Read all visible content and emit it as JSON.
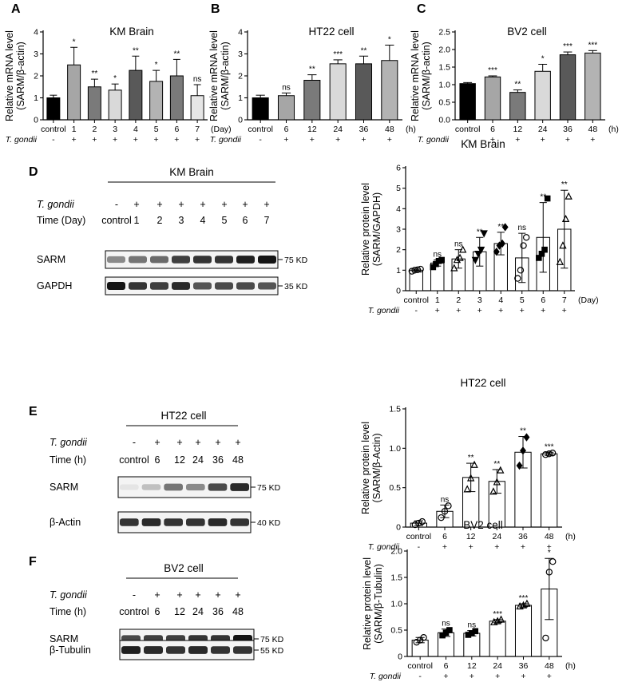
{
  "panel_A": {
    "letter": "A",
    "title": "KM Brain",
    "ylabel1": "Relative mRNA level",
    "ylabel2": "(SARM/β-actin)",
    "yticks": [
      "0",
      "1",
      "2",
      "3",
      "4"
    ],
    "categories": [
      "control",
      "1",
      "2",
      "3",
      "4",
      "5",
      "6",
      "7"
    ],
    "unit": "(Day)",
    "treatment_label": "T. gondii",
    "treatment_marks": [
      "-",
      "+",
      "+",
      "+",
      "+",
      "+",
      "+",
      "+"
    ],
    "values": [
      1.0,
      2.5,
      1.5,
      1.35,
      2.25,
      1.75,
      2.0,
      1.1
    ],
    "errors": [
      0.12,
      0.8,
      0.35,
      0.28,
      0.65,
      0.5,
      0.75,
      0.5
    ],
    "significance": [
      "",
      "*",
      "**",
      "*",
      "**",
      "*",
      "**",
      "ns"
    ],
    "colors": [
      "#000000",
      "#a6a6a6",
      "#7a7a7a",
      "#d9d9d9",
      "#595959",
      "#b3b3b3",
      "#7a7a7a",
      "#e6e6e6"
    ]
  },
  "panel_B": {
    "letter": "B",
    "title": "HT22 cell",
    "ylabel1": "Relative mRNA level",
    "ylabel2": "(SARM/β-actin)",
    "yticks": [
      "0",
      "1",
      "2",
      "3",
      "4"
    ],
    "categories": [
      "control",
      "6",
      "12",
      "24",
      "36",
      "48"
    ],
    "unit": "(h)",
    "treatment_label": "T. gondii",
    "treatment_marks": [
      "-",
      "+",
      "+",
      "+",
      "+",
      "+"
    ],
    "values": [
      1.0,
      1.1,
      1.8,
      2.55,
      2.55,
      2.7
    ],
    "errors": [
      0.12,
      0.12,
      0.25,
      0.18,
      0.35,
      0.7
    ],
    "significance": [
      "",
      "ns",
      "**",
      "***",
      "**",
      "*"
    ],
    "colors": [
      "#000000",
      "#a6a6a6",
      "#7a7a7a",
      "#d9d9d9",
      "#595959",
      "#b3b3b3"
    ]
  },
  "panel_C": {
    "letter": "C",
    "title": "BV2 cell",
    "ylabel1": "Relative mRNA level",
    "ylabel2": "(SARM/β-actin)",
    "yticks": [
      "0.0",
      "0.5",
      "1.0",
      "1.5",
      "2.0",
      "2.5"
    ],
    "categories": [
      "control",
      "6",
      "12",
      "24",
      "36",
      "48"
    ],
    "unit": "(h)",
    "treatment_label": "T. gondii",
    "treatment_marks": [
      "-",
      "+",
      "+",
      "+",
      "+",
      "+"
    ],
    "values": [
      1.03,
      1.22,
      0.78,
      1.38,
      1.85,
      1.9
    ],
    "errors": [
      0.03,
      0.03,
      0.07,
      0.2,
      0.08,
      0.07
    ],
    "significance": [
      "",
      "***",
      "**",
      "*",
      "***",
      "***"
    ],
    "colors": [
      "#000000",
      "#a6a6a6",
      "#7a7a7a",
      "#d9d9d9",
      "#595959",
      "#b3b3b3"
    ]
  },
  "panel_D": {
    "letter": "D",
    "blot_title": "KM Brain",
    "blot_treatment_label": "T. gondii",
    "blot_marks": [
      "-",
      "+",
      "+",
      "+",
      "+",
      "+",
      "+",
      "+"
    ],
    "blot_time_label": "Time (Day)",
    "blot_lanes": [
      "control",
      "1",
      "2",
      "3",
      "4",
      "5",
      "6",
      "7"
    ],
    "blot_rows": [
      {
        "name": "SARM",
        "kd": "75 KD",
        "intensity": [
          0.45,
          0.55,
          0.6,
          0.8,
          0.85,
          0.85,
          0.95,
          1.0
        ]
      },
      {
        "name": "GAPDH",
        "kd": "35 KD",
        "intensity": [
          1.0,
          0.85,
          0.8,
          0.9,
          0.7,
          0.75,
          0.75,
          0.7
        ]
      }
    ],
    "chart_title": "KM Brain",
    "ylabel1": "Relative protein level",
    "ylabel2": "(SARM/GAPDH)",
    "yticks": [
      "0",
      "1",
      "2",
      "3",
      "4",
      "5",
      "6"
    ],
    "categories": [
      "control",
      "1",
      "2",
      "3",
      "4",
      "5",
      "6",
      "7"
    ],
    "unit": "(Day)",
    "treatment_label": "T. gondii",
    "treatment_marks": [
      "-",
      "+",
      "+",
      "+",
      "+",
      "+",
      "+",
      "+"
    ],
    "values": [
      1.0,
      1.35,
      1.55,
      1.9,
      2.3,
      1.6,
      2.6,
      3.0
    ],
    "errors": [
      0.05,
      0.15,
      0.45,
      0.7,
      0.55,
      1.2,
      1.7,
      1.9
    ],
    "significance": [
      "",
      "ns",
      "ns",
      "**",
      "**",
      "ns",
      "**",
      "**"
    ],
    "markers": [
      "circle",
      "square",
      "triangle",
      "invtriangle",
      "diamond",
      "circle",
      "square",
      "triangle"
    ],
    "points": [
      [
        0.95,
        1.0,
        1.02,
        1.05
      ],
      [
        1.15,
        1.3,
        1.45,
        1.5
      ],
      [
        1.1,
        1.5,
        1.6,
        2.0
      ],
      [
        1.5,
        1.8,
        2.0,
        2.8
      ],
      [
        1.9,
        2.2,
        2.3,
        3.1
      ],
      [
        0.6,
        1.0,
        2.2,
        2.6
      ],
      [
        1.6,
        1.8,
        2.0,
        4.5
      ],
      [
        1.4,
        2.2,
        3.5,
        4.6
      ]
    ]
  },
  "panel_E": {
    "letter": "E",
    "blot_title": "HT22 cell",
    "blot_treatment_label": "T. gondii",
    "blot_marks": [
      "-",
      "+",
      "+",
      "+",
      "+",
      "+"
    ],
    "blot_time_label": "Time (h)",
    "blot_lanes": [
      "control",
      "6",
      "12",
      "24",
      "36",
      "48"
    ],
    "blot_rows": [
      {
        "name": "SARM",
        "kd": "75 KD",
        "intensity": [
          0.03,
          0.2,
          0.55,
          0.45,
          0.75,
          0.9
        ]
      },
      {
        "name": "β-Actin",
        "kd": "40 KD",
        "intensity": [
          0.85,
          0.9,
          0.85,
          0.85,
          0.9,
          0.85
        ]
      }
    ],
    "chart_title": "HT22 cell",
    "ylabel1": "Relative protein level",
    "ylabel2": "(SARM/β-Actin)",
    "yticks": [
      "0",
      "0.5",
      "1.0",
      "1.5"
    ],
    "categories": [
      "control",
      "6",
      "12",
      "24",
      "36",
      "48"
    ],
    "unit": "(h)",
    "treatment_label": "T. gondii",
    "treatment_marks": [
      "-",
      "+",
      "+",
      "+",
      "+",
      "+"
    ],
    "values": [
      0.05,
      0.2,
      0.63,
      0.58,
      0.95,
      0.93
    ],
    "errors": [
      0.03,
      0.08,
      0.18,
      0.15,
      0.2,
      0.02
    ],
    "significance": [
      "",
      "ns",
      "**",
      "**",
      "**",
      "***"
    ],
    "markers": [
      "circle",
      "circle",
      "triangle",
      "triangle",
      "diamond",
      "circle"
    ],
    "points": [
      [
        0.03,
        0.05,
        0.07
      ],
      [
        0.12,
        0.2,
        0.27
      ],
      [
        0.48,
        0.62,
        0.79
      ],
      [
        0.45,
        0.57,
        0.72
      ],
      [
        0.78,
        0.97,
        1.14
      ],
      [
        0.92,
        0.93,
        0.94
      ]
    ]
  },
  "panel_F": {
    "letter": "F",
    "blot_title": "BV2 cell",
    "blot_treatment_label": "T. gondii",
    "blot_marks": [
      "-",
      "+",
      "+",
      "+",
      "+",
      "+"
    ],
    "blot_time_label": "Time (h)",
    "blot_lanes": [
      "control",
      "6",
      "12",
      "24",
      "36",
      "48"
    ],
    "blot_rows": [
      {
        "name": "SARM",
        "kd": "75 KD",
        "intensity": [
          0.75,
          0.8,
          0.8,
          0.85,
          0.85,
          1.0
        ]
      },
      {
        "name": "β-Tubulin",
        "kd": "55 KD",
        "intensity": [
          0.95,
          0.9,
          0.85,
          0.9,
          0.85,
          0.85
        ]
      }
    ],
    "chart_title": "BV2 cell",
    "ylabel1": "Relative protein level",
    "ylabel2": "(SARM/β-Tubulin)",
    "yticks": [
      "0",
      "0.5",
      "1.0",
      "1.5",
      "2.0"
    ],
    "categories": [
      "control",
      "6",
      "12",
      "24",
      "36",
      "48"
    ],
    "unit": "(h)",
    "treatment_label": "T. gondii",
    "treatment_marks": [
      "-",
      "+",
      "+",
      "+",
      "+",
      "+"
    ],
    "values": [
      0.31,
      0.45,
      0.44,
      0.67,
      0.97,
      1.28
    ],
    "errors": [
      0.05,
      0.07,
      0.05,
      0.03,
      0.03,
      0.58
    ],
    "significance": [
      "",
      "ns",
      "ns",
      "***",
      "***",
      "*"
    ],
    "markers": [
      "circle",
      "square",
      "square",
      "triangle",
      "triangle",
      "circle"
    ],
    "points": [
      [
        0.27,
        0.31,
        0.36
      ],
      [
        0.4,
        0.45,
        0.5
      ],
      [
        0.41,
        0.44,
        0.48
      ],
      [
        0.65,
        0.67,
        0.7
      ],
      [
        0.95,
        0.97,
        1.0
      ],
      [
        0.35,
        1.6,
        1.8
      ]
    ]
  }
}
